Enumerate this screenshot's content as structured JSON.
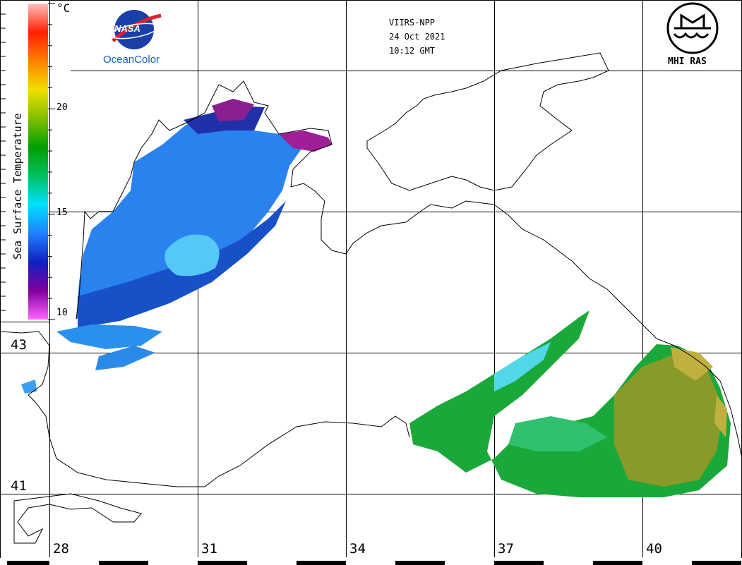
{
  "header": {
    "satellite": "VIIRS-NPP",
    "date": "24 Oct 2021",
    "time": "10:12 GMT"
  },
  "logos": {
    "nasa_mark": "NASA",
    "nasa_caption": "OceanColor",
    "mhi_caption": "MHI RAS"
  },
  "legend": {
    "label": "Sea Surface Temperature",
    "unit": "°C",
    "ticks": [
      "20",
      "15",
      "10"
    ],
    "tick_values": [
      20,
      15,
      10
    ],
    "range": [
      10,
      25
    ],
    "colors": [
      "#ff66ff",
      "#8000a0",
      "#1020c0",
      "#2080ff",
      "#00e0ff",
      "#00c060",
      "#00a000",
      "#80c000",
      "#f0e000",
      "#ff8000",
      "#ff2000",
      "#ffc0c0"
    ]
  },
  "axes": {
    "lon_labels": [
      "28",
      "31",
      "34",
      "37",
      "40"
    ],
    "lon_values": [
      28,
      31,
      34,
      37,
      40
    ],
    "lat_labels": [
      "43",
      "41"
    ],
    "lat_values": [
      43,
      41
    ]
  }
}
